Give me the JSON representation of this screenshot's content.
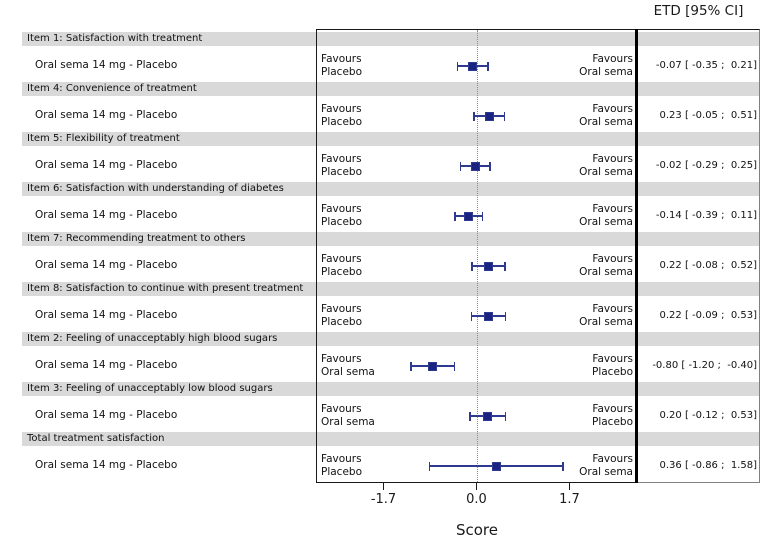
{
  "header": {
    "etd_label": "ETD [95% CI]"
  },
  "colors": {
    "band": "#d9d9d9",
    "marker_fill": "#1b2380",
    "marker_edge": "#2e3a8f",
    "error_line": "#2e3a8f",
    "frame": "#1a1a1a"
  },
  "chart_data": {
    "type": "forest",
    "title": "",
    "xlabel": "Score",
    "column_header": "ETD [95% CI]",
    "xtick_labels": [
      "-1.7",
      "0.0",
      "1.7"
    ],
    "xtick_values": [
      -1.7,
      0.0,
      1.7
    ],
    "xlim": [
      -2.93,
      2.93
    ],
    "grid": "zero-line-dotted",
    "groups": [
      {
        "item": "Item 1: Satisfaction with treatment",
        "comparison": "Oral sema 14 mg - Placebo",
        "estimate": -0.07,
        "ci": [
          -0.35,
          0.21
        ],
        "ci_text": "-0.07 [ -0.35 ;  0.21]",
        "favours_left": [
          "Favours",
          "Placebo"
        ],
        "favours_right": [
          "Favours",
          "Oral sema"
        ]
      },
      {
        "item": "Item 4: Convenience of treatment",
        "comparison": "Oral sema 14 mg - Placebo",
        "estimate": 0.23,
        "ci": [
          -0.05,
          0.51
        ],
        "ci_text": "0.23 [ -0.05 ;  0.51]",
        "favours_left": [
          "Favours",
          "Placebo"
        ],
        "favours_right": [
          "Favours",
          "Oral sema"
        ]
      },
      {
        "item": "Item 5: Flexibility of treatment",
        "comparison": "Oral sema 14 mg - Placebo",
        "estimate": -0.02,
        "ci": [
          -0.29,
          0.25
        ],
        "ci_text": "-0.02 [ -0.29 ;  0.25]",
        "favours_left": [
          "Favours",
          "Placebo"
        ],
        "favours_right": [
          "Favours",
          "Oral sema"
        ]
      },
      {
        "item": "Item 6: Satisfaction with understanding of diabetes",
        "comparison": "Oral sema 14 mg - Placebo",
        "estimate": -0.14,
        "ci": [
          -0.39,
          0.11
        ],
        "ci_text": "-0.14 [ -0.39 ;  0.11]",
        "favours_left": [
          "Favours",
          "Placebo"
        ],
        "favours_right": [
          "Favours",
          "Oral sema"
        ]
      },
      {
        "item": "Item 7: Recommending treatment to others",
        "comparison": "Oral sema 14 mg - Placebo",
        "estimate": 0.22,
        "ci": [
          -0.08,
          0.52
        ],
        "ci_text": "0.22 [ -0.08 ;  0.52]",
        "favours_left": [
          "Favours",
          "Placebo"
        ],
        "favours_right": [
          "Favours",
          "Oral sema"
        ]
      },
      {
        "item": "Item 8: Satisfaction to continue with present treatment",
        "comparison": "Oral sema 14 mg - Placebo",
        "estimate": 0.22,
        "ci": [
          -0.09,
          0.53
        ],
        "ci_text": "0.22 [ -0.09 ;  0.53]",
        "favours_left": [
          "Favours",
          "Placebo"
        ],
        "favours_right": [
          "Favours",
          "Oral sema"
        ]
      },
      {
        "item": "Item 2: Feeling of unacceptably high blood sugars",
        "comparison": "Oral sema 14 mg - Placebo",
        "estimate": -0.8,
        "ci": [
          -1.2,
          -0.4
        ],
        "ci_text": "-0.80 [ -1.20 ;  -0.40]",
        "favours_left": [
          "Favours",
          "Oral sema"
        ],
        "favours_right": [
          "Favours",
          "Placebo"
        ]
      },
      {
        "item": "Item 3: Feeling of unacceptably low blood sugars",
        "comparison": "Oral sema 14 mg - Placebo",
        "estimate": 0.2,
        "ci": [
          -0.12,
          0.53
        ],
        "ci_text": "0.20 [ -0.12 ;  0.53]",
        "favours_left": [
          "Favours",
          "Oral sema"
        ],
        "favours_right": [
          "Favours",
          "Placebo"
        ]
      },
      {
        "item": "Total treatment satisfaction",
        "comparison": "Oral sema 14 mg - Placebo",
        "estimate": 0.36,
        "ci": [
          -0.86,
          1.58
        ],
        "ci_text": "0.36 [ -0.86 ;  1.58]",
        "favours_left": [
          "Favours",
          "Placebo"
        ],
        "favours_right": [
          "Favours",
          "Oral sema"
        ]
      }
    ]
  }
}
